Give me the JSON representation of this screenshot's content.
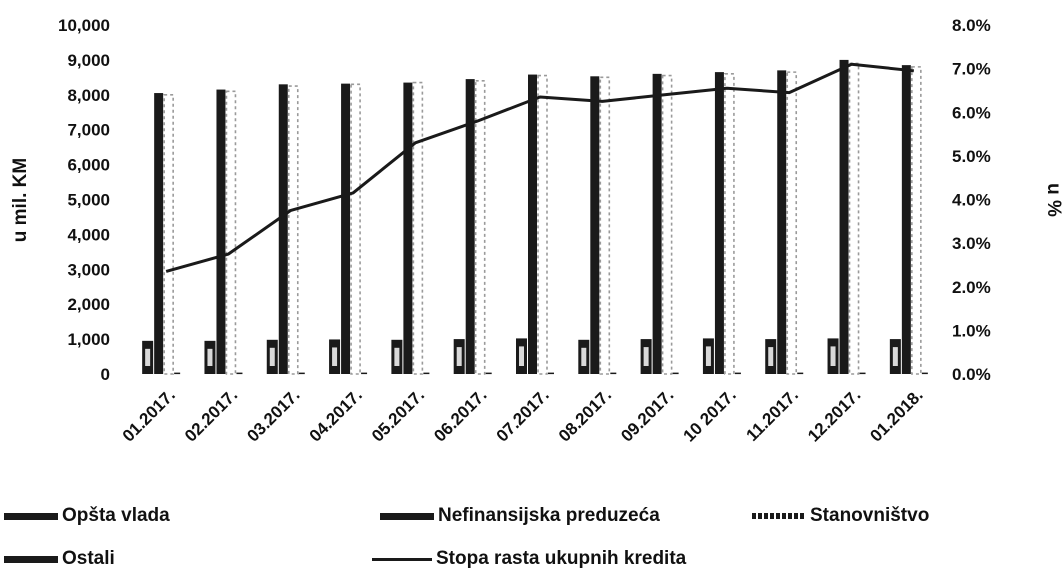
{
  "chart_data": {
    "type": "bar",
    "categories": [
      "01.2017.",
      "02.2017.",
      "03.2017.",
      "04.2017.",
      "05.2017.",
      "06.2017.",
      "07.2017.",
      "08.2017.",
      "09.2017.",
      "10 2017.",
      "11.2017.",
      "12.2017.",
      "01.2018."
    ],
    "ylabel": "u mil. KM",
    "y2label": "u %",
    "ylim": [
      0,
      10000
    ],
    "y2lim": [
      0,
      0.08
    ],
    "yticks": [
      "0",
      "1,000",
      "2,000",
      "3,000",
      "4,000",
      "5,000",
      "6,000",
      "7,000",
      "8,000",
      "9,000",
      "10,000"
    ],
    "y2ticks": [
      "0.0%",
      "1.0%",
      "2.0%",
      "3.0%",
      "4.0%",
      "5.0%",
      "6.0%",
      "7.0%",
      "8.0%"
    ],
    "series": [
      {
        "name": "Opšta vlada",
        "axis": "left",
        "type": "bar",
        "values": [
          950,
          950,
          980,
          990,
          980,
          1000,
          1020,
          980,
          1000,
          1020,
          1000,
          1020,
          1000
        ]
      },
      {
        "name": "Nefinansijska preduzeća",
        "axis": "left",
        "type": "bar",
        "values": [
          8050,
          8150,
          8300,
          8320,
          8350,
          8450,
          8580,
          8530,
          8600,
          8650,
          8700,
          9000,
          8850
        ]
      },
      {
        "name": "Stanovništvo",
        "axis": "left",
        "type": "bar",
        "values": [
          8000,
          8100,
          8250,
          8300,
          8350,
          8400,
          8550,
          8500,
          8550,
          8600,
          8650,
          8900,
          8800
        ]
      },
      {
        "name": "Ostali",
        "axis": "left",
        "type": "bar",
        "values": [
          40,
          40,
          40,
          40,
          40,
          40,
          40,
          40,
          40,
          40,
          40,
          40,
          40
        ]
      },
      {
        "name": "Stopa rasta ukupnih kredita",
        "axis": "right",
        "type": "line",
        "values": [
          2.35,
          2.75,
          3.75,
          4.15,
          5.3,
          5.8,
          6.35,
          6.25,
          6.4,
          6.55,
          6.45,
          7.1,
          6.95
        ]
      }
    ],
    "grid": false,
    "legend": "bottom"
  },
  "legend": {
    "item1": "Opšta vlada",
    "item2": "Nefinansijska preduzeća",
    "item3": "Stanovništvo",
    "item4": "Ostali",
    "item5": "Stopa rasta ukupnih kredita"
  },
  "colors": {
    "bar": "#1a1a1a",
    "dotted_bar": "#9a9a9a",
    "line": "#1a1a1a"
  }
}
